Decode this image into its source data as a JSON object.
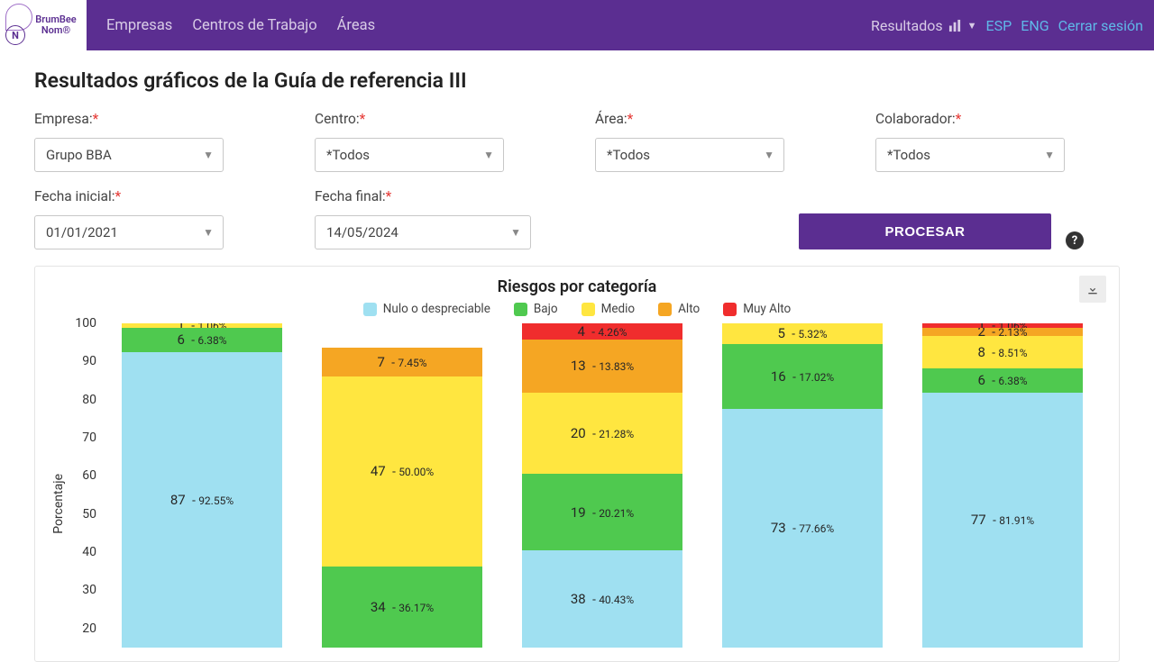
{
  "nav": {
    "logo_top": "BrumBee",
    "logo_bottom": "Nom®",
    "links": [
      "Empresas",
      "Centros de Trabajo",
      "Áreas"
    ],
    "resultados": "Resultados",
    "lang_esp": "ESP",
    "lang_eng": "ENG",
    "logout": "Cerrar sesión"
  },
  "page_title": "Resultados gráficos de la Guía de referencia III",
  "filters": {
    "empresa_label": "Empresa:",
    "empresa_value": "Grupo BBA",
    "centro_label": "Centro:",
    "centro_value": "*Todos",
    "area_label": "Área:",
    "area_value": "*Todos",
    "colab_label": "Colaborador:",
    "colab_value": "*Todos",
    "fecha_ini_label": "Fecha inicial:",
    "fecha_ini_value": "01/01/2021",
    "fecha_fin_label": "Fecha final:",
    "fecha_fin_value": "14/05/2024",
    "procesar": "PROCESAR"
  },
  "chart": {
    "title": "Riesgos por categoría",
    "y_label": "Porcentaje",
    "legend": [
      {
        "label": "Nulo o despreciable",
        "color": "#9fe0f1"
      },
      {
        "label": "Bajo",
        "color": "#4fc94f"
      },
      {
        "label": "Medio",
        "color": "#ffe640"
      },
      {
        "label": "Alto",
        "color": "#f5a623"
      },
      {
        "label": "Muy Alto",
        "color": "#f02d2d"
      }
    ],
    "y_ticks": [
      100,
      90,
      80,
      70,
      60,
      50,
      40,
      30,
      20
    ],
    "y_visible_max": 100,
    "y_visible_min": 15,
    "colors": {
      "nulo": "#9fe0f1",
      "bajo": "#4fc94f",
      "medio": "#ffe640",
      "alto": "#f5a623",
      "muy": "#f02d2d"
    },
    "bars": [
      {
        "segments": [
          {
            "level": "nulo",
            "count": 87,
            "pct": 92.55
          },
          {
            "level": "bajo",
            "count": 6,
            "pct": 6.38
          },
          {
            "level": "medio",
            "count": 1,
            "pct": 1.06
          }
        ]
      },
      {
        "segments": [
          {
            "level": "bajo",
            "count": 34,
            "pct": 36.17
          },
          {
            "level": "medio",
            "count": 47,
            "pct": 50.0
          },
          {
            "level": "alto",
            "count": 7,
            "pct": 7.45
          }
        ]
      },
      {
        "segments": [
          {
            "level": "nulo",
            "count": 38,
            "pct": 40.43
          },
          {
            "level": "bajo",
            "count": 19,
            "pct": 20.21
          },
          {
            "level": "medio",
            "count": 20,
            "pct": 21.28
          },
          {
            "level": "alto",
            "count": 13,
            "pct": 13.83
          },
          {
            "level": "muy",
            "count": 4,
            "pct": 4.26
          }
        ]
      },
      {
        "segments": [
          {
            "level": "nulo",
            "count": 73,
            "pct": 77.66
          },
          {
            "level": "bajo",
            "count": 16,
            "pct": 17.02
          },
          {
            "level": "medio",
            "count": 5,
            "pct": 5.32
          }
        ]
      },
      {
        "segments": [
          {
            "level": "nulo",
            "count": 77,
            "pct": 81.91
          },
          {
            "level": "bajo",
            "count": 6,
            "pct": 6.38
          },
          {
            "level": "medio",
            "count": 8,
            "pct": 8.51
          },
          {
            "level": "alto",
            "count": 2,
            "pct": 2.13
          },
          {
            "level": "muy",
            "count": 1,
            "pct": 1.06
          }
        ]
      }
    ]
  }
}
